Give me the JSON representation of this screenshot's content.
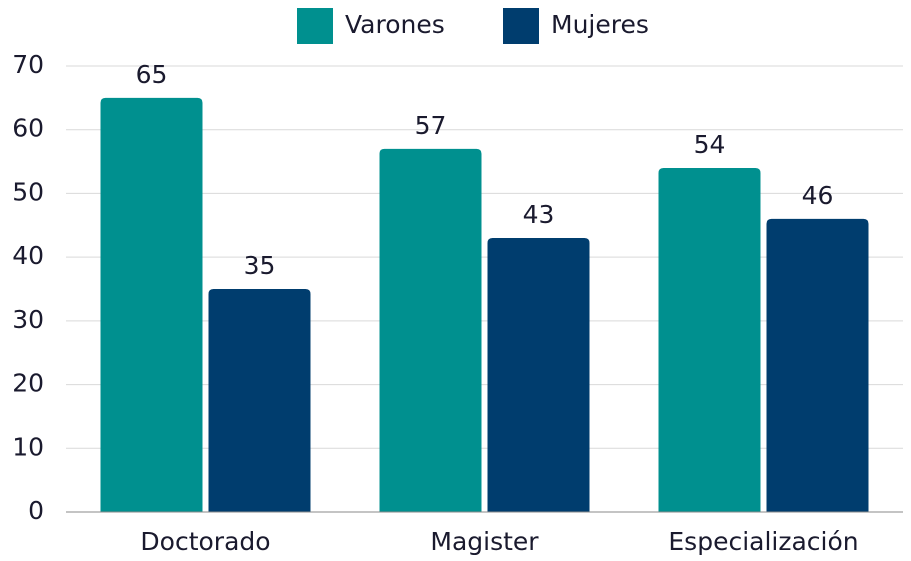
{
  "chart_data": {
    "type": "bar",
    "categories": [
      "Doctorado",
      "Magister",
      "Especialización"
    ],
    "series": [
      {
        "name": "Varones",
        "color": "#00908f",
        "values": [
          65,
          57,
          54
        ]
      },
      {
        "name": "Mujeres",
        "color": "#003d6e",
        "values": [
          35,
          43,
          46
        ]
      }
    ],
    "ylim": [
      0,
      70
    ],
    "yticks": [
      0,
      10,
      20,
      30,
      40,
      50,
      60,
      70
    ],
    "grid": true,
    "legend": "top"
  }
}
